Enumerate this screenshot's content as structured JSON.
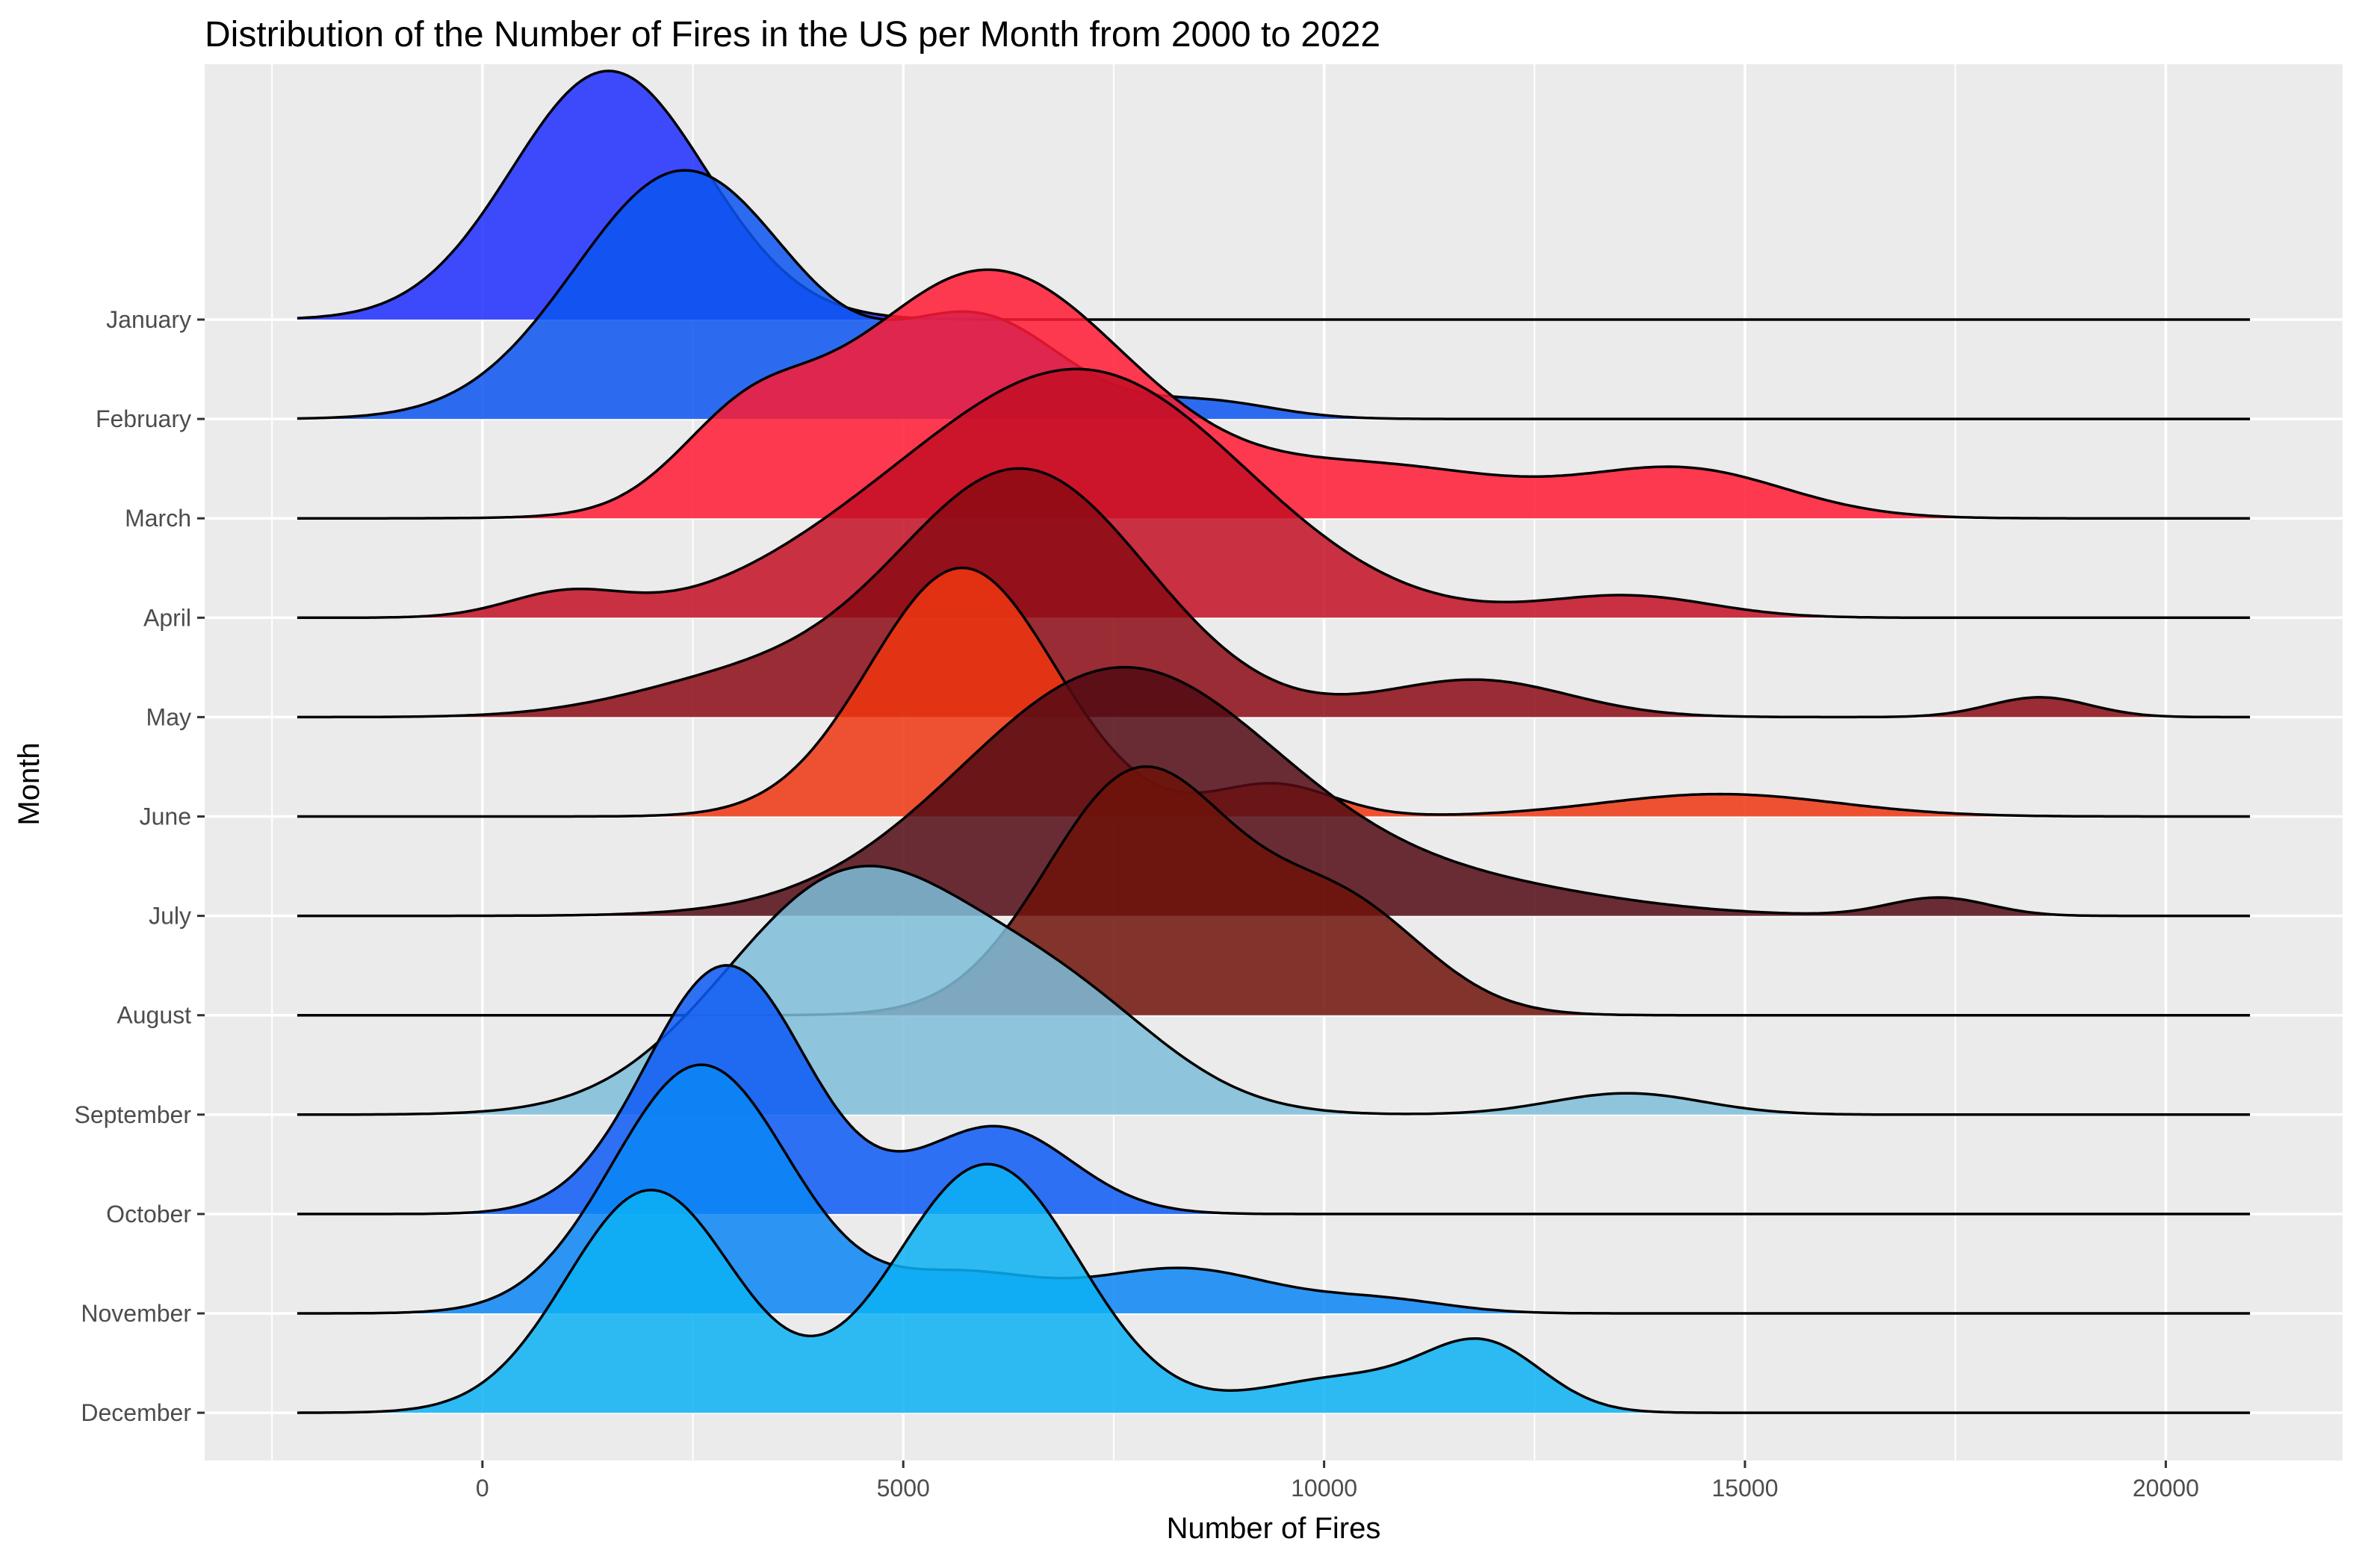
{
  "chart_data": {
    "type": "ridgeline",
    "title": "Distribution of the Number of Fires in the US per Month from 2000 to 2022",
    "xlabel": "Number of Fires",
    "ylabel": "Month",
    "xlim": [
      -3300,
      22100
    ],
    "x_ticks": [
      0,
      5000,
      10000,
      15000,
      20000
    ],
    "x_tick_labels": [
      "0",
      "5000",
      "10000",
      "15000",
      "20000"
    ],
    "grid": true,
    "density_x_range": [
      -2200,
      21000
    ],
    "months": [
      "January",
      "February",
      "March",
      "April",
      "May",
      "June",
      "July",
      "August",
      "September",
      "October",
      "November",
      "December"
    ],
    "series": [
      {
        "name": "January",
        "color": "#1f2eff",
        "peaks": [
          [
            1500,
            1.0,
            1150
          ]
        ]
      },
      {
        "name": "February",
        "color": "#0b55f0",
        "peaks": [
          [
            2400,
            1.0,
            1300
          ],
          [
            5900,
            0.4,
            1000
          ],
          [
            8600,
            0.07,
            800
          ]
        ]
      },
      {
        "name": "March",
        "color": "#ff1a33",
        "peaks": [
          [
            3100,
            0.28,
            800
          ],
          [
            6000,
            1.0,
            1700
          ],
          [
            10700,
            0.2,
            1600
          ],
          [
            14300,
            0.19,
            1200
          ]
        ]
      },
      {
        "name": "April",
        "color": "#c30f24",
        "peaks": [
          [
            1000,
            0.1,
            700
          ],
          [
            4400,
            0.16,
            1500
          ],
          [
            7200,
            1.0,
            1900
          ],
          [
            13600,
            0.09,
            1000
          ]
        ]
      },
      {
        "name": "May",
        "color": "#8b0a14",
        "peaks": [
          [
            3000,
            0.14,
            1300
          ],
          [
            6400,
            1.0,
            1500
          ],
          [
            11800,
            0.15,
            1100
          ],
          [
            18500,
            0.08,
            600
          ]
        ]
      },
      {
        "name": "June",
        "color": "#ee3610",
        "peaks": [
          [
            5700,
            1.0,
            1100
          ],
          [
            9400,
            0.13,
            700
          ],
          [
            14700,
            0.09,
            1400
          ]
        ]
      },
      {
        "name": "July",
        "color": "#520a14",
        "peaks": [
          [
            7600,
            0.95,
            1900
          ],
          [
            11800,
            0.1,
            1700
          ],
          [
            17300,
            0.07,
            600
          ]
        ]
      },
      {
        "name": "August",
        "color": "#6e130a",
        "peaks": [
          [
            7800,
            0.9,
            1100
          ],
          [
            10200,
            0.4,
            1000
          ]
        ]
      },
      {
        "name": "September",
        "color": "#7ebdd9",
        "peaks": [
          [
            4400,
            0.78,
            1500
          ],
          [
            7000,
            0.3,
            1200
          ],
          [
            13600,
            0.07,
            900
          ]
        ]
      },
      {
        "name": "October",
        "color": "#0c5af5",
        "peaks": [
          [
            2900,
            1.0,
            950
          ],
          [
            6100,
            0.35,
            900
          ]
        ]
      },
      {
        "name": "November",
        "color": "#0a86f5",
        "peaks": [
          [
            2600,
            1.0,
            1050
          ],
          [
            5700,
            0.15,
            900
          ],
          [
            8300,
            0.18,
            1100
          ],
          [
            10700,
            0.05,
            800
          ]
        ]
      },
      {
        "name": "December",
        "color": "#0cb2f5",
        "peaks": [
          [
            2000,
            0.85,
            1000
          ],
          [
            6000,
            0.95,
            1100
          ],
          [
            10200,
            0.13,
            1000
          ],
          [
            11900,
            0.25,
            700
          ]
        ]
      }
    ]
  }
}
